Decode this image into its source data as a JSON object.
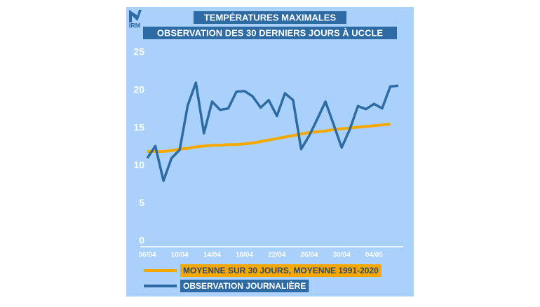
{
  "logo": "IRM",
  "chart_data": {
    "type": "line",
    "title": "TEMPÉRATURES MAXIMALES",
    "subtitle": "OBSERVATION DES 30 DERNIERS JOURS À UCCLE",
    "categories": [
      "06/04",
      null,
      null,
      null,
      "10/04",
      null,
      null,
      null,
      "14/04",
      null,
      null,
      null,
      "18/04",
      null,
      null,
      null,
      "22/04",
      null,
      null,
      null,
      "26/04",
      null,
      null,
      null,
      "30/04",
      null,
      null,
      null,
      "04/05",
      null,
      null,
      null
    ],
    "series": [
      {
        "name": "MOYENNE SUR 30 JOURS, MOYENNE 1991-2020",
        "color": "#f5a800",
        "values": [
          11.9,
          11.9,
          11.9,
          12.0,
          12.2,
          12.3,
          12.5,
          12.6,
          12.7,
          12.7,
          12.8,
          12.8,
          12.9,
          13.0,
          13.2,
          13.4,
          13.6,
          13.8,
          14.0,
          14.2,
          14.4,
          14.5,
          14.6,
          14.8,
          14.9,
          15.0,
          15.1,
          15.2,
          15.3,
          15.4,
          15.5,
          null
        ]
      },
      {
        "name": "OBSERVATION JOURNALIÈRE",
        "color": "#2e6aa3",
        "values": [
          11.0,
          12.6,
          8.0,
          11.0,
          12.1,
          18.0,
          21.0,
          14.3,
          18.5,
          17.4,
          17.6,
          19.8,
          19.9,
          19.2,
          17.7,
          18.7,
          16.6,
          19.6,
          18.7,
          12.2,
          14.0,
          16.2,
          18.5,
          15.5,
          12.4,
          14.8,
          17.9,
          17.5,
          18.2,
          17.6,
          20.5,
          20.6
        ]
      }
    ],
    "ylim": [
      0,
      25
    ],
    "yticks": [
      0,
      5,
      10,
      15,
      20,
      25
    ],
    "grid": false
  }
}
